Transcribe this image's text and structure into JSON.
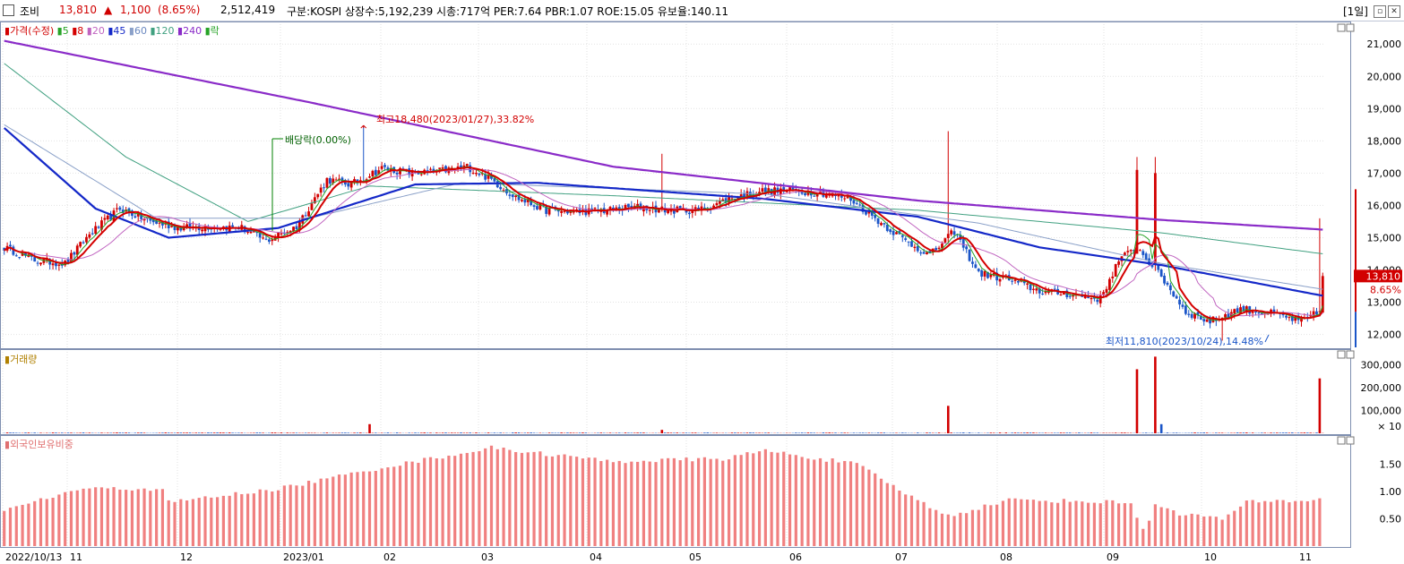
{
  "header": {
    "name": "조비",
    "price": "13,810",
    "change_arrow": "▲",
    "change": "1,100",
    "change_pct": "(8.65%)",
    "volume": "2,512,419",
    "info": "구분:KOSPI 상장수:5,192,239 시총:717억 PER:7.64 PBR:1.07 ROE:15.05 유보율:140.11",
    "period": "[1일]"
  },
  "legend": {
    "price": "가격(수정)",
    "ma5": "5",
    "ma8": "8",
    "ma20": "20",
    "ma45": "45",
    "ma60": "60",
    "ma120": "120",
    "ma240": "240",
    "fall": "락",
    "volume": "거래량",
    "foreign": "외국인보유비중"
  },
  "colors": {
    "up": "#d20000",
    "down": "#1a55c8",
    "ma5": "#27a327",
    "ma8": "#d40000",
    "ma20": "#c064c0",
    "ma45": "#1428c8",
    "ma60": "#8aa0c8",
    "ma120": "#40a080",
    "ma240": "#8a2bc8",
    "foreign": "#f08080"
  },
  "chart_data": {
    "type": "candlestick",
    "price_axis": {
      "range": [
        11600,
        21700
      ],
      "ticks": [
        "21,000",
        "20,000",
        "19,000",
        "18,000",
        "17,000",
        "16,000",
        "15,000",
        "14,000",
        "13,000",
        "12,000"
      ]
    },
    "volume_axis": {
      "ticks": [
        "300,000",
        "200,000",
        "100,000"
      ],
      "unit": "× 10"
    },
    "foreign_axis": {
      "ticks": [
        "1.50",
        "1.00",
        "0.50"
      ]
    },
    "x_labels": [
      "2022/10/13",
      "11",
      "12",
      "2023/01",
      "02",
      "03",
      "04",
      "05",
      "06",
      "07",
      "08",
      "09",
      "10",
      "11"
    ],
    "annotations": {
      "high": "최고18,480(2023/01/27),33.82%",
      "low": "최저11,810(2023/10/24),14.48%",
      "dividend": "배당락(0.00%)"
    },
    "last_price_label": "13,810",
    "last_pct_label": "8.65%",
    "anchors": [
      [
        0,
        14700
      ],
      [
        10,
        14300
      ],
      [
        20,
        14200
      ],
      [
        28,
        15100
      ],
      [
        38,
        15900
      ],
      [
        48,
        15500
      ],
      [
        58,
        15300
      ],
      [
        68,
        15350
      ],
      [
        78,
        15300
      ],
      [
        86,
        14900
      ],
      [
        96,
        15350
      ],
      [
        106,
        16800
      ],
      [
        114,
        16650
      ],
      [
        124,
        17150
      ],
      [
        134,
        17000
      ],
      [
        142,
        17050
      ],
      [
        152,
        17200
      ],
      [
        160,
        16800
      ],
      [
        168,
        16250
      ],
      [
        178,
        15850
      ],
      [
        188,
        15800
      ],
      [
        198,
        15850
      ],
      [
        208,
        15950
      ],
      [
        218,
        15850
      ],
      [
        228,
        15850
      ],
      [
        238,
        16200
      ],
      [
        248,
        16450
      ],
      [
        258,
        16450
      ],
      [
        268,
        16400
      ],
      [
        278,
        16200
      ],
      [
        286,
        15600
      ],
      [
        296,
        14900
      ],
      [
        304,
        14450
      ],
      [
        312,
        15200
      ],
      [
        320,
        13900
      ],
      [
        330,
        13700
      ],
      [
        340,
        13350
      ],
      [
        350,
        13250
      ],
      [
        360,
        13100
      ],
      [
        366,
        14300
      ],
      [
        372,
        14700
      ],
      [
        380,
        13800
      ],
      [
        388,
        12700
      ],
      [
        396,
        12400
      ],
      [
        406,
        12800
      ],
      [
        416,
        12650
      ],
      [
        426,
        12400
      ],
      [
        432,
        12710
      ],
      [
        433,
        13810
      ]
    ],
    "ma240_anchors": [
      [
        0,
        21100
      ],
      [
        100,
        19200
      ],
      [
        200,
        17200
      ],
      [
        300,
        16150
      ],
      [
        380,
        15550
      ],
      [
        433,
        15250
      ]
    ],
    "ma120_anchors": [
      [
        0,
        20400
      ],
      [
        40,
        17500
      ],
      [
        80,
        15500
      ],
      [
        120,
        16600
      ],
      [
        200,
        16300
      ],
      [
        300,
        15850
      ],
      [
        380,
        15150
      ],
      [
        433,
        14500
      ]
    ],
    "ma60_anchors": [
      [
        0,
        18500
      ],
      [
        50,
        15600
      ],
      [
        100,
        15600
      ],
      [
        150,
        16700
      ],
      [
        250,
        16350
      ],
      [
        320,
        15450
      ],
      [
        380,
        14200
      ],
      [
        433,
        13400
      ]
    ],
    "ma45_anchors": [
      [
        0,
        18400
      ],
      [
        30,
        15900
      ],
      [
        54,
        15000
      ],
      [
        90,
        15300
      ],
      [
        135,
        16650
      ],
      [
        175,
        16700
      ],
      [
        250,
        16200
      ],
      [
        300,
        15650
      ],
      [
        340,
        14700
      ],
      [
        380,
        14150
      ],
      [
        433,
        13200
      ]
    ],
    "volume_spikes": [
      [
        120,
        40000
      ],
      [
        216,
        15000
      ],
      [
        310,
        120000
      ],
      [
        372,
        280000
      ],
      [
        378,
        335000
      ],
      [
        380,
        40000
      ],
      [
        432,
        240000
      ]
    ],
    "foreign_anchors": [
      [
        0,
        0.65
      ],
      [
        25,
        1.05
      ],
      [
        52,
        1.05
      ],
      [
        54,
        0.8
      ],
      [
        90,
        1.05
      ],
      [
        125,
        1.45
      ],
      [
        160,
        1.8
      ],
      [
        200,
        1.55
      ],
      [
        236,
        1.6
      ],
      [
        250,
        1.75
      ],
      [
        280,
        1.5
      ],
      [
        298,
        0.9
      ],
      [
        310,
        0.55
      ],
      [
        330,
        0.85
      ],
      [
        370,
        0.8
      ],
      [
        375,
        0.15
      ],
      [
        377,
        0.8
      ],
      [
        386,
        0.6
      ],
      [
        400,
        0.5
      ],
      [
        408,
        0.8
      ],
      [
        433,
        0.85
      ]
    ]
  }
}
